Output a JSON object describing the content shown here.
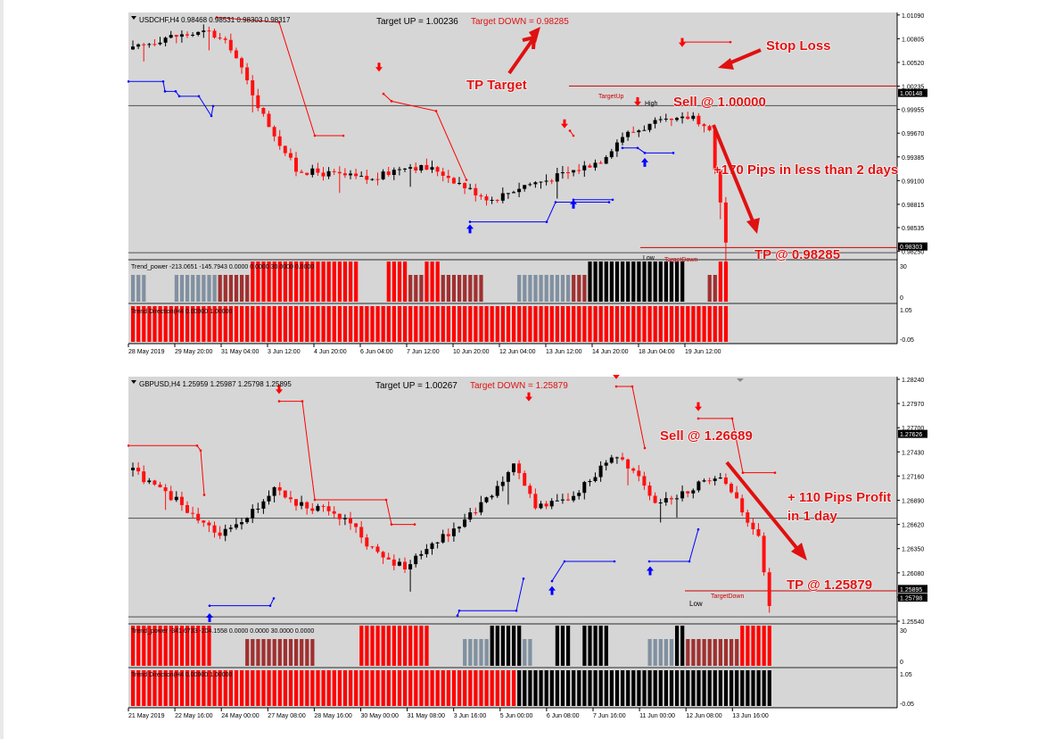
{
  "charts": [
    {
      "id": "usdchf",
      "header": "USDCHF,H4  0.98468 0.98531 0.98303 0.98317",
      "target_up": "Target UP = 1.00236",
      "target_down": "Target DOWN = 0.98285",
      "annotations": {
        "tp_target": "TP Target",
        "stop_loss": "Stop Loss",
        "sell": "Sell @ 1.00000",
        "pips": "+170 Pips in less than 2 days",
        "tp": "TP @ 0.98285"
      },
      "line_labels": {
        "target_up": "TargetUp",
        "high": "High",
        "low": "Low",
        "target_down": "TargetDown"
      },
      "price_axis": [
        "1.01090",
        "1.00805",
        "1.00520",
        "1.00235",
        "0.99955",
        "0.99670",
        "0.99385",
        "0.99100",
        "0.98815",
        "0.98535",
        "0.98250"
      ],
      "price_flags": [
        "1.00148",
        "0.98303"
      ],
      "price_range": [
        0.9816,
        1.0112
      ],
      "indicator1": {
        "label": "Trend_power -213.0651 -145.7943 0.0000 0.0000 30.0000 0.0000",
        "axis_top": "30",
        "axis_bottom": "0"
      },
      "indicator2": {
        "label": "Trend Direction(H4 0.00000 1.00000",
        "axis_top": "1.05",
        "axis_bottom": "-0.05"
      },
      "time_axis": [
        "28 May 2019",
        "29 May 20:00",
        "31 May 04:00",
        "3 Jun 12:00",
        "4 Jun 20:00",
        "6 Jun 04:00",
        "7 Jun 12:00",
        "10 Jun 20:00",
        "12 Jun 04:00",
        "13 Jun 12:00",
        "14 Jun 20:00",
        "18 Jun 04:00",
        "19 Jun 12:00"
      ],
      "chart_data": {
        "type": "candlestick",
        "symbol": "USDCHF",
        "timeframe": "H4",
        "ohlc_last": {
          "open": 0.98468,
          "high": 0.98531,
          "low": 0.98303,
          "close": 0.98317
        },
        "target_up": 1.00236,
        "target_down": 0.98285,
        "sell_price": 1.0,
        "take_profit": 0.98285,
        "ylim": [
          0.9825,
          1.0109
        ],
        "trend_power": [
          -213.0651,
          -145.7943,
          0.0,
          0.0,
          30.0,
          0.0
        ],
        "trend_direction": [
          0.0,
          1.0
        ]
      }
    },
    {
      "id": "gbpusd",
      "header": "GBPUSD,H4  1.25959 1.25987 1.25798 1.25895",
      "target_up": "Target UP = 1.00267",
      "target_down": "Target DOWN = 1.25879",
      "annotations": {
        "sell": "Sell @ 1.26689",
        "pips_line1": "+ 110 Pips Profit",
        "pips_line2": "in 1 day",
        "tp": "TP @ 1.25879"
      },
      "line_labels": {
        "low": "Low",
        "target_down": "TargetDown"
      },
      "price_axis": [
        "1.28240",
        "1.27970",
        "1.27700",
        "1.27430",
        "1.27160",
        "1.26890",
        "1.26620",
        "1.26350",
        "1.26080",
        "1.25810",
        "1.25540"
      ],
      "price_flags": [
        "1.27626",
        "1.25895",
        "1.25798"
      ],
      "price_range": [
        1.2552,
        1.2827
      ],
      "indicator1": {
        "label": "Trend_power -341.6733 -204.1558 0.0000 0.0000 30.0000 0.0000",
        "axis_top": "30",
        "axis_bottom": "0"
      },
      "indicator2": {
        "label": "Trend Direction(H4 0.00000 1.00000",
        "axis_top": "1.05",
        "axis_bottom": "-0.05"
      },
      "time_axis": [
        "21 May 2019",
        "22 May 16:00",
        "24 May 00:00",
        "27 May 08:00",
        "28 May 16:00",
        "30 May 00:00",
        "31 May 08:00",
        "3 Jun 16:00",
        "5 Jun 00:00",
        "6 Jun 08:00",
        "7 Jun 16:00",
        "11 Jun 00:00",
        "12 Jun 08:00",
        "13 Jun 16:00"
      ],
      "chart_data": {
        "type": "candlestick",
        "symbol": "GBPUSD",
        "timeframe": "H4",
        "ohlc_last": {
          "open": 1.25959,
          "high": 1.25987,
          "low": 1.25798,
          "close": 1.25895
        },
        "target_up": 1.00267,
        "target_down": 1.25879,
        "sell_price": 1.26689,
        "take_profit": 1.25879,
        "ylim": [
          1.2554,
          1.2824
        ],
        "trend_power": [
          -341.6733,
          -204.1558,
          0.0,
          0.0,
          30.0,
          0.0
        ],
        "trend_direction": [
          0.0,
          1.0
        ]
      }
    }
  ]
}
